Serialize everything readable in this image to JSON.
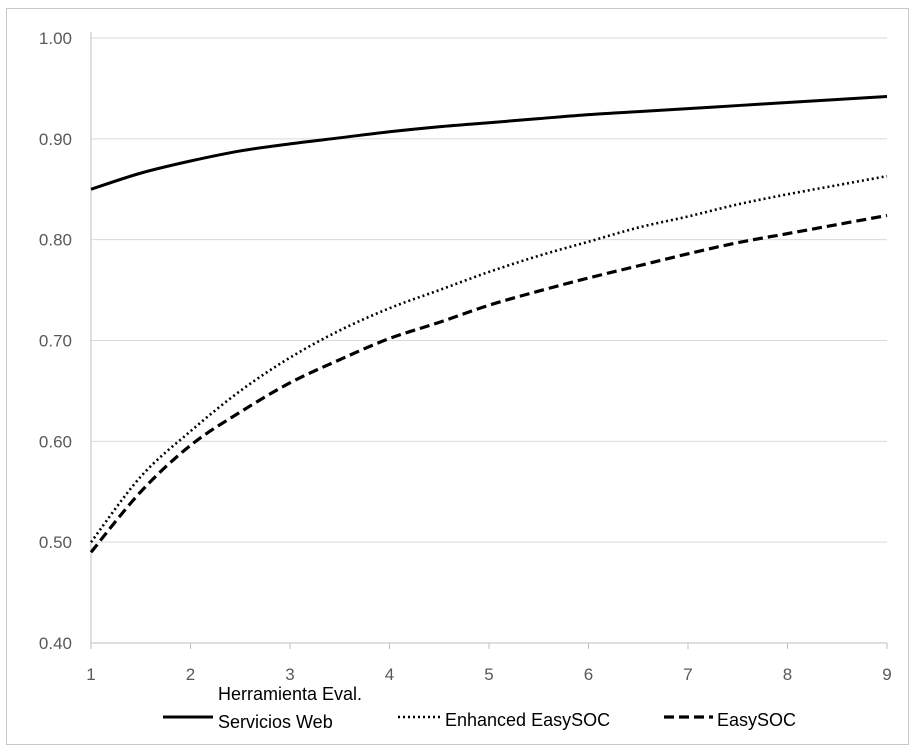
{
  "chart_data": {
    "type": "line",
    "title": "",
    "xlabel": "",
    "ylabel": "",
    "x": [
      1,
      1.5,
      2,
      2.5,
      3,
      3.5,
      4,
      4.5,
      5,
      5.5,
      6,
      6.5,
      7,
      7.5,
      8,
      8.5,
      9
    ],
    "xlim": [
      1,
      9
    ],
    "ylim": [
      0.4,
      1.0
    ],
    "x_ticks": [
      "1",
      "2",
      "3",
      "4",
      "5",
      "6",
      "7",
      "8",
      "9"
    ],
    "y_ticks": [
      "0.40",
      "0.50",
      "0.60",
      "0.70",
      "0.80",
      "0.90",
      "1.00"
    ],
    "y_tick_values": [
      0.4,
      0.5,
      0.6,
      0.7,
      0.8,
      0.9,
      1.0
    ],
    "grid": "horizontal",
    "legend_position": "bottom",
    "series": [
      {
        "name": "Herramienta Eval. Servicios Web",
        "name_lines": [
          "Herramienta Eval.",
          "Servicios Web"
        ],
        "style": "solid",
        "color": "#000000",
        "values": [
          0.85,
          0.866,
          0.878,
          0.888,
          0.895,
          0.901,
          0.907,
          0.912,
          0.916,
          0.92,
          0.924,
          0.927,
          0.93,
          0.933,
          0.936,
          0.939,
          0.942
        ]
      },
      {
        "name": "Enhanced EasySOC",
        "style": "dotted",
        "color": "#000000",
        "values": [
          0.5,
          0.565,
          0.61,
          0.65,
          0.683,
          0.71,
          0.732,
          0.75,
          0.768,
          0.784,
          0.798,
          0.812,
          0.823,
          0.835,
          0.845,
          0.854,
          0.863
        ]
      },
      {
        "name": "EasySOC",
        "style": "dashed",
        "color": "#000000",
        "values": [
          0.49,
          0.55,
          0.596,
          0.629,
          0.658,
          0.681,
          0.702,
          0.718,
          0.735,
          0.749,
          0.762,
          0.774,
          0.786,
          0.797,
          0.806,
          0.815,
          0.824
        ]
      }
    ]
  }
}
